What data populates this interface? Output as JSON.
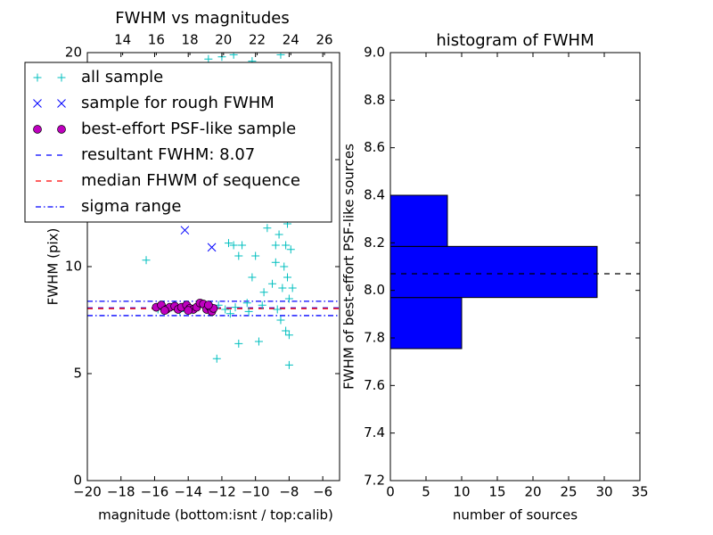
{
  "chart_data": [
    {
      "type": "scatter",
      "title": "FWHM vs magnitudes",
      "xlabel": "magnitude (bottom:isnt / top:calib)",
      "ylabel": "FWHM (pix)",
      "xlim": [
        -20,
        -5
      ],
      "xticks": [
        {
          "value": -20,
          "label": "−20"
        },
        {
          "value": -18,
          "label": "−18"
        },
        {
          "value": -16,
          "label": "−16"
        },
        {
          "value": -14,
          "label": "−14"
        },
        {
          "value": -12,
          "label": "−12"
        },
        {
          "value": -10,
          "label": "−10"
        },
        {
          "value": -8,
          "label": "−8"
        },
        {
          "value": -6,
          "label": "−6"
        }
      ],
      "x2lim": [
        11.9,
        26.9
      ],
      "x2ticks": [
        14,
        16,
        18,
        20,
        22,
        24,
        26
      ],
      "ylim": [
        0,
        20
      ],
      "yticks": [
        0,
        5,
        10,
        15,
        20
      ],
      "legend": "upper left",
      "series": [
        {
          "name": "all sample",
          "color": "#00bfbf",
          "marker": "+",
          "x": [
            -16.5,
            -15.8,
            -15,
            -14.5,
            -13.8,
            -13,
            -12.2,
            -11.8,
            -11.5,
            -11.2,
            -11.6,
            -11.3,
            -11,
            -10.5,
            -10.2,
            -10,
            -9.8,
            -9.5,
            -9.3,
            -9.2,
            -9,
            -9,
            -8.8,
            -8.8,
            -8.7,
            -8.6,
            -8.5,
            -8.5,
            -8.4,
            -8.4,
            -8.3,
            -8.3,
            -8.2,
            -8.2,
            -8.1,
            -8.1,
            -8,
            -8,
            -8,
            -7.9,
            -7.9,
            -7.8,
            -8.6,
            -8.9,
            -9.5,
            -10.5,
            -10.8,
            -12.3,
            -10.8,
            -11,
            -12.8,
            -12,
            -11.3,
            -10.2,
            -8.5,
            -9,
            -8.3,
            -8.8,
            -9.6,
            -10.4
          ],
          "values": [
            10.3,
            8,
            8.1,
            7.9,
            8,
            8.1,
            8.2,
            8,
            7.8,
            8.1,
            11.1,
            11,
            6.4,
            8.3,
            9.5,
            10.5,
            6.5,
            8.8,
            11.8,
            12.5,
            9.2,
            13,
            10.2,
            14,
            8,
            11.5,
            7.5,
            12.8,
            15,
            9,
            10,
            13.5,
            7,
            11,
            9.5,
            12,
            6.8,
            5.4,
            8.5,
            10.8,
            13,
            9,
            16,
            15.5,
            14.5,
            12.5,
            13.5,
            5.7,
            11,
            10.5,
            19.7,
            19.8,
            19.9,
            19.6,
            19.9,
            17.5,
            17,
            11,
            8.2,
            7.9
          ]
        },
        {
          "name": "sample for rough FWHM",
          "color": "#0000ff",
          "marker": "x",
          "x": [
            -14.2,
            -12.6
          ],
          "values": [
            11.7,
            10.9
          ]
        },
        {
          "name": "best-effort PSF-like sample",
          "color": "#bf00bf",
          "marker": "o",
          "x": [
            -15.9,
            -15.6,
            -15.3,
            -15.1,
            -14.8,
            -14.6,
            -14.4,
            -14.1,
            -13.9,
            -13.7,
            -13.5,
            -13.3,
            -13.1,
            -12.9,
            -12.7,
            -12.6,
            -12.5,
            -15.4,
            -14,
            -12.8
          ],
          "values": [
            8.1,
            8.2,
            8,
            8.1,
            8.15,
            8,
            8.1,
            8.2,
            8.05,
            8,
            8.1,
            8.3,
            8.25,
            8,
            8.1,
            7.9,
            8.05,
            7.95,
            7.95,
            8.2
          ]
        },
        {
          "name": "resultant FWHM: 8.07",
          "color": "#0000ff",
          "kind": "hline",
          "style": "dashed",
          "values": [
            8.07
          ]
        },
        {
          "name": "median FHWM of sequence",
          "color": "#ff0000",
          "kind": "hline",
          "style": "dashed",
          "values": [
            8.04
          ]
        },
        {
          "name": "sigma range",
          "color": "#0000ff",
          "kind": "hline",
          "style": "dashdot",
          "values": [
            8.38,
            7.71
          ]
        }
      ]
    },
    {
      "type": "histogram",
      "title": "histogram of FWHM",
      "orientation": "horizontal",
      "xlabel": "number of sources",
      "ylabel": "FWHM of best-effort PSF-like sources",
      "bins": [
        7.755,
        7.97,
        8.185,
        8.4
      ],
      "values": [
        10,
        29,
        8
      ],
      "color": "#0000ff",
      "hline": 8.07,
      "xlim": [
        0,
        35
      ],
      "xticks": [
        0,
        5,
        10,
        15,
        20,
        25,
        30,
        35
      ],
      "ylim": [
        7.2,
        9.0
      ],
      "yticks": [
        7.2,
        7.4,
        7.6,
        7.8,
        {
          "value": 8.0,
          "label": "8.0"
        },
        8.2,
        8.4,
        8.6,
        8.8,
        {
          "value": 9.0,
          "label": "9.0"
        }
      ]
    }
  ]
}
